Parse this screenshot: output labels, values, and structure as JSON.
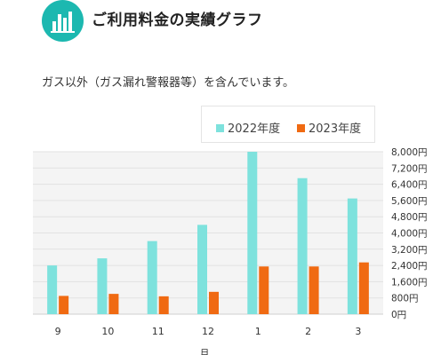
{
  "header": {
    "title": "ご利用料金の実績グラフ",
    "icon": "bar-chart-icon",
    "accent_color": "#1cb8b0"
  },
  "note": "ガス以外（ガス漏れ警報器等）を含んでいます。",
  "legend": {
    "series_2022": "2022年度",
    "series_2023": "2023年度"
  },
  "chart_data": {
    "type": "bar",
    "categories": [
      "9",
      "10",
      "11",
      "12",
      "1",
      "2",
      "3"
    ],
    "series": [
      {
        "name": "2022年度",
        "color": "#7ee2dd",
        "values": [
          2400,
          2750,
          3600,
          4400,
          8000,
          6700,
          5700
        ]
      },
      {
        "name": "2023年度",
        "color": "#f06a12",
        "values": [
          900,
          1000,
          880,
          1100,
          2350,
          2350,
          2550
        ]
      }
    ],
    "y_ticks": [
      "8,000円",
      "7,200円",
      "6,400円",
      "5,600円",
      "4,800円",
      "4,000円",
      "3,200円",
      "2,400円",
      "1,600円",
      "800円",
      "0円"
    ],
    "ylim": [
      0,
      8000
    ],
    "xlabel": "月",
    "grid": true,
    "legend_position": "top-right"
  }
}
